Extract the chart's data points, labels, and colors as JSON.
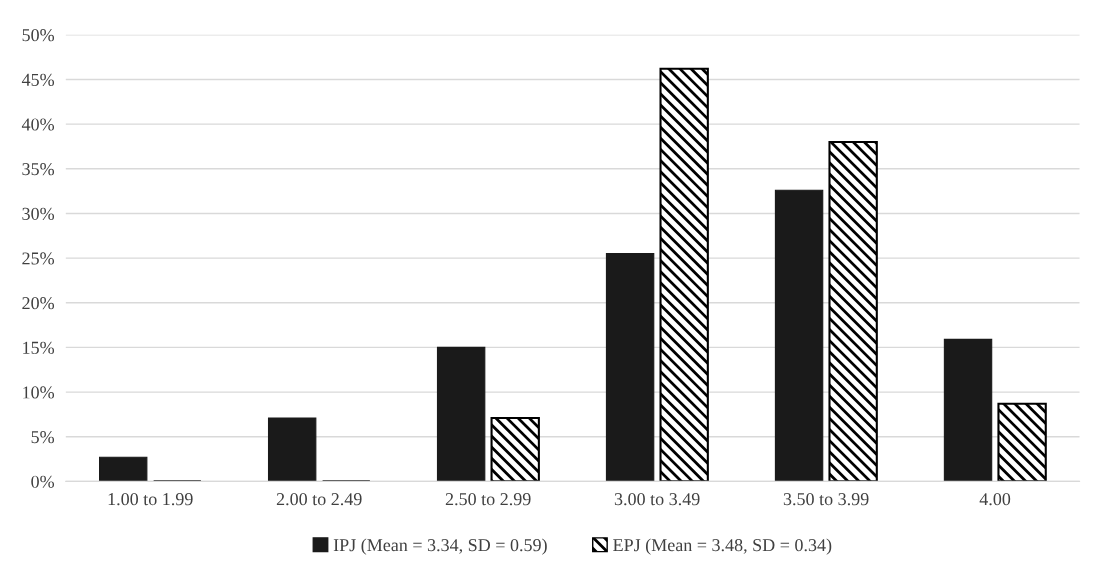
{
  "chart_data": {
    "type": "bar",
    "categories": [
      "1.00 to 1.99",
      "2.00 to 2.49",
      "2.50 to 2.99",
      "3.00 to 3.49",
      "3.50 to 3.99",
      "4.00"
    ],
    "series": [
      {
        "name": "IPJ (Mean = 3.34, SD = 0.59)",
        "color": "#1a1a1a",
        "values": [
          2.7,
          7.1,
          15.0,
          25.5,
          32.6,
          15.9
        ]
      },
      {
        "name": "EPJ (Mean = 3.48, SD = 0.34)",
        "color": "#000000",
        "values": [
          0,
          0,
          7.1,
          46.2,
          38.0,
          8.7
        ]
      }
    ],
    "ylim": [
      0,
      50
    ],
    "yticks": [
      {
        "value": 0,
        "label": "0%"
      },
      {
        "value": 5,
        "label": "5%"
      },
      {
        "value": 10,
        "label": "10%"
      },
      {
        "value": 15,
        "label": "15%"
      },
      {
        "value": 20,
        "label": "20%"
      },
      {
        "value": 25,
        "label": "25%"
      },
      {
        "value": 30,
        "label": "30%"
      },
      {
        "value": 35,
        "label": "35%"
      },
      {
        "value": 40,
        "label": "40%"
      },
      {
        "value": 45,
        "label": "45%"
      },
      {
        "value": 50,
        "label": "50%"
      }
    ],
    "grid": "y",
    "legend": "bottom"
  }
}
